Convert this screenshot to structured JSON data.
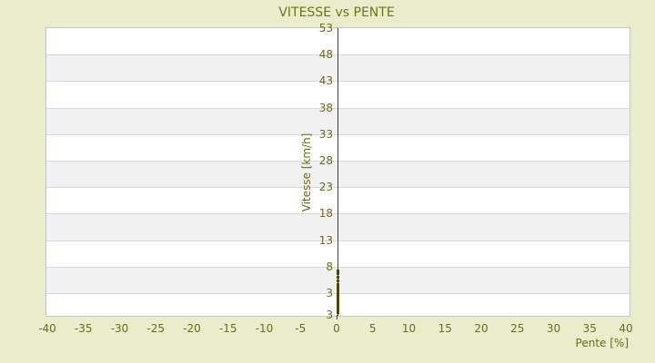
{
  "title": "VITESSE vs PENTE",
  "colors": {
    "background": "#e9edcb",
    "band_light": "#ffffff",
    "band_dark": "#f1f1f1",
    "gridline": "#d9d9d9",
    "plot_border": "#c6c6c6",
    "axis_line": "#47470b",
    "point": "#47470b",
    "text": "#6b6b1d",
    "title_text": "#72721e"
  },
  "chart_data": {
    "type": "scatter",
    "title": "VITESSE vs PENTE",
    "xlabel": "Pente [%]",
    "ylabel": "Vitesse [km/h]",
    "xlim": [
      -40,
      40
    ],
    "ylim": [
      -1.3,
      53
    ],
    "x_ticks": [
      -40,
      -35,
      -30,
      -25,
      -20,
      -15,
      -10,
      -5,
      0,
      5,
      10,
      15,
      20,
      25,
      30,
      35,
      40
    ],
    "y_ticks": [
      53,
      48,
      43,
      38,
      33,
      28,
      23,
      18,
      13,
      8,
      3
    ],
    "y_axis_bottom_label": "3",
    "grid": "horizontal-bands-alternating",
    "legend": "none",
    "series": [
      {
        "name": "vitesse",
        "pente": 0,
        "y_values": [
          7.3,
          6.8,
          6.1,
          5.4,
          4.7,
          4.2,
          3.7,
          3.3,
          3.0,
          2.7,
          2.3,
          2.0,
          1.6,
          1.3,
          1.1,
          0.8,
          0.4,
          0.1,
          -0.1,
          -0.4,
          -0.6
        ]
      }
    ]
  }
}
